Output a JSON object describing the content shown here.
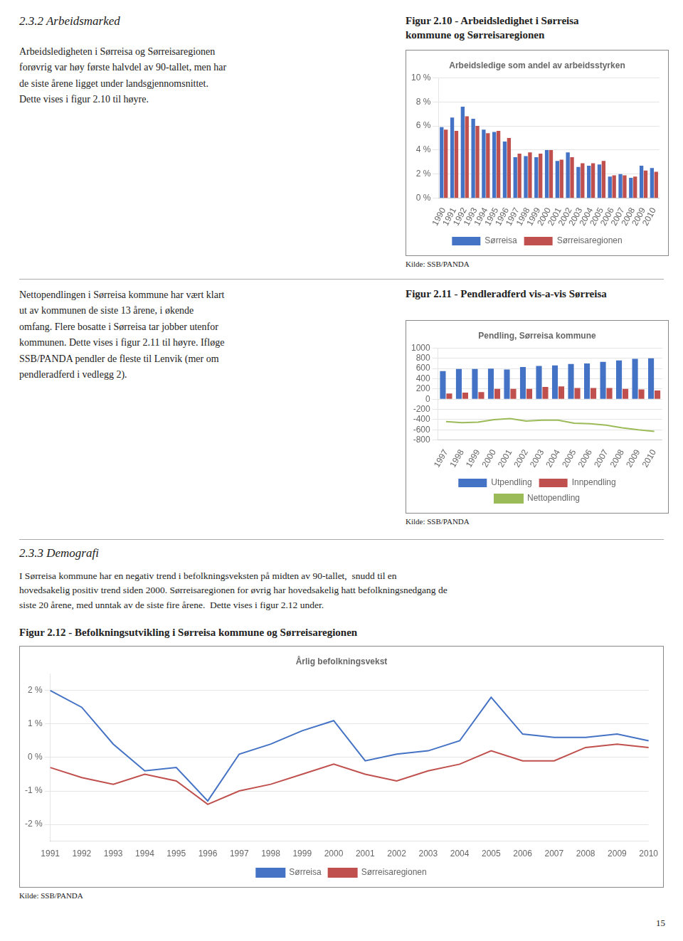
{
  "annotations": [
    "2.3.2 Arbeidsmarked",
    "Arbeidsledigheten i Sørreisa og Sørreisaregionen\nforøvrig var høy første halvdel av 90-tallet, men har\nde siste årene ligget under landsgjennomsnittet.\nDette vises i figur 2.10 til høyre.",
    "Nettopendlingen i Sørreisa kommune har vært klart\nut av kommunen de siste 13 årene, i økende\nomfang. Flere bosatte i Sørreisa tar jobber utenfor\nkommunen. Dette vises i figur 2.11 til høyre. Ifløge\nSSB/PANDA pendler de fleste til Lenvik (mer om\npendleradferd i vedlegg 2).",
    "2.3.3 Demografi",
    "I Sørreisa kommune har en negativ trend i befolkningsveksten på midten av 90-tallet,  snudd til en\nhovedsakelig positiv trend siden 2000. Sørreisaregionen for øvrig har hovedsakelig hatt befolkningsnedgang de\nsiste 20 årene, med unntak av de siste fire årene.  Dette vises i figur 2.12 under.",
    "15"
  ],
  "chart_data": [
    {
      "type": "bar",
      "subtitle": "Figur 2.10 - Arbeidsledighet i Sørreisa\nkommune og Sørreisaregionen",
      "title": "Arbeidsledige som andel av arbeidsstyrken",
      "annotations": [
        "Kilde: SSB/PANDA"
      ],
      "categories": [
        1990,
        1991,
        1992,
        1993,
        1994,
        1995,
        1996,
        1997,
        1998,
        1999,
        2000,
        2001,
        2002,
        2003,
        2004,
        2005,
        2006,
        2007,
        2008,
        2009,
        2010
      ],
      "series": [
        {
          "name": "Sørreisa",
          "color": "#4472C4",
          "values": [
            5.9,
            6.7,
            7.6,
            6.6,
            5.7,
            5.5,
            4.7,
            3.4,
            3.5,
            3.4,
            4.0,
            3.1,
            3.8,
            2.6,
            2.7,
            2.8,
            1.8,
            2.0,
            1.7,
            2.7,
            2.5
          ]
        },
        {
          "name": "Sørreisaregionen",
          "color": "#C0504D",
          "values": [
            5.7,
            5.6,
            6.8,
            6.0,
            5.4,
            5.6,
            5.0,
            3.7,
            3.8,
            3.7,
            4.0,
            3.2,
            3.4,
            2.9,
            2.9,
            3.1,
            1.9,
            1.9,
            1.8,
            2.3,
            2.2
          ]
        }
      ],
      "ylim": [
        0,
        10
      ],
      "yticks": [
        {
          "value": 0,
          "label": "0 %"
        },
        {
          "value": 2,
          "label": "2 %"
        },
        {
          "value": 4,
          "label": "4 %"
        },
        {
          "value": 6,
          "label": "6 %"
        },
        {
          "value": 8,
          "label": "8 %"
        },
        {
          "value": 10,
          "label": "10 %"
        }
      ],
      "grid": true,
      "legend": "bottom"
    },
    {
      "type": "bar",
      "subtitle": "Figur 2.11 - Pendleradferd vis-a-vis Sørreisa",
      "title": "Pendling, Sørreisa kommune",
      "annotations": [
        "Kilde: SSB/PANDA"
      ],
      "categories": [
        1997,
        1998,
        1999,
        2000,
        2001,
        2002,
        2003,
        2004,
        2005,
        2006,
        2007,
        2008,
        2009,
        2010
      ],
      "series": [
        {
          "name": "Utpendling",
          "color": "#4472C4",
          "values": [
            550,
            590,
            590,
            600,
            580,
            630,
            650,
            660,
            690,
            700,
            730,
            760,
            790,
            800
          ]
        },
        {
          "name": "Innpendling",
          "color": "#C0504D",
          "values": [
            110,
            130,
            140,
            200,
            200,
            200,
            240,
            250,
            220,
            220,
            220,
            200,
            190,
            170
          ]
        },
        {
          "name": "Nettopendling",
          "color": "#9BBB59",
          "type": "line",
          "values": [
            -440,
            -460,
            -450,
            -400,
            -380,
            -430,
            -410,
            -410,
            -470,
            -480,
            -510,
            -560,
            -600,
            -630
          ]
        }
      ],
      "ylim": [
        -800,
        1000
      ],
      "yticks": [
        -800,
        -600,
        -400,
        -200,
        0,
        200,
        400,
        600,
        800,
        1000
      ],
      "grid": true,
      "legend": "bottom"
    },
    {
      "type": "line",
      "subtitle": "Figur 2.12 - Befolkningsutvikling i Sørreisa kommune og Sørreisaregionen",
      "title": "Årlig befolkningsvekst",
      "annotations": [
        "Kilde: SSB/PANDA"
      ],
      "categories": [
        1991,
        1992,
        1993,
        1994,
        1995,
        1996,
        1997,
        1998,
        1999,
        2000,
        2001,
        2002,
        2003,
        2004,
        2005,
        2006,
        2007,
        2008,
        2009,
        2010
      ],
      "series": [
        {
          "name": "Sørreisa",
          "color": "#4472C4",
          "values": [
            2.0,
            1.5,
            0.4,
            -0.4,
            -0.3,
            -1.3,
            0.1,
            0.4,
            0.8,
            1.1,
            -0.1,
            0.1,
            0.2,
            0.5,
            1.8,
            0.7,
            0.6,
            0.6,
            0.7,
            0.5
          ]
        },
        {
          "name": "Sørreisaregionen",
          "color": "#C0504D",
          "values": [
            -0.3,
            -0.6,
            -0.8,
            -0.5,
            -0.7,
            -1.4,
            -1.0,
            -0.8,
            -0.5,
            -0.2,
            -0.5,
            -0.7,
            -0.4,
            -0.2,
            0.2,
            -0.1,
            -0.1,
            0.3,
            0.4,
            0.3
          ]
        }
      ],
      "ylim": [
        -2.5,
        2.5
      ],
      "yticks": [
        {
          "value": -2,
          "label": "-2 %"
        },
        {
          "value": -1,
          "label": "-1 %"
        },
        {
          "value": 0,
          "label": "0 %"
        },
        {
          "value": 1,
          "label": "1 %"
        },
        {
          "value": 2,
          "label": "2 %"
        }
      ],
      "grid": true,
      "legend": "bottom"
    }
  ]
}
